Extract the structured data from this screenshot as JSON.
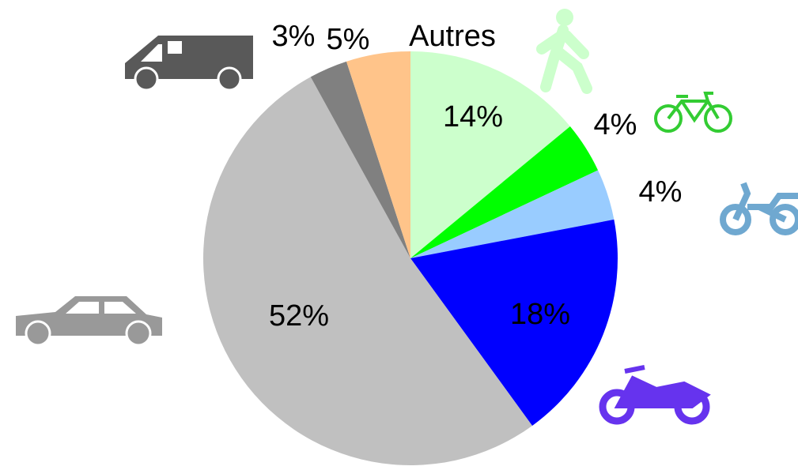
{
  "chart_data": {
    "type": "pie",
    "categories": [
      null,
      null,
      null,
      null,
      null,
      null,
      "Autres"
    ],
    "values": [
      14,
      4,
      4,
      18,
      52,
      3,
      5
    ],
    "value_labels": [
      "14%",
      "4%",
      "4%",
      "18%",
      "52%",
      "3%",
      "5%"
    ],
    "colors": [
      "#ccffcc",
      "#00ff00",
      "#99ccff",
      "#0000ff",
      "#c0c0c0",
      "#808080",
      "#ffc48a"
    ]
  }
}
